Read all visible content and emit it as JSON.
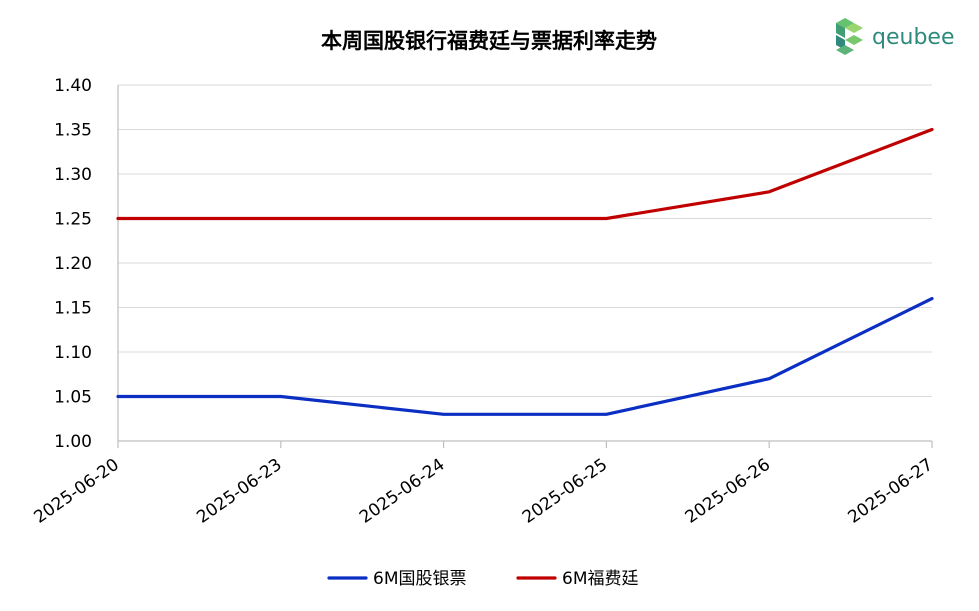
{
  "chart_data": {
    "type": "line",
    "title": "本周国股银行福费廷与票据利率走势",
    "categories": [
      "2025-06-20",
      "2025-06-23",
      "2025-06-24",
      "2025-06-25",
      "2025-06-26",
      "2025-06-27"
    ],
    "series": [
      {
        "name": "6M国股银票",
        "color": "#0b2fc2",
        "values": [
          1.05,
          1.05,
          1.03,
          1.03,
          1.07,
          1.16
        ]
      },
      {
        "name": "6M福费廷",
        "color": "#c00000",
        "values": [
          1.25,
          1.25,
          1.25,
          1.25,
          1.28,
          1.35
        ]
      }
    ],
    "ylim": [
      1.0,
      1.4
    ],
    "yticks": [
      "1.00",
      "1.05",
      "1.10",
      "1.15",
      "1.20",
      "1.25",
      "1.30",
      "1.35",
      "1.40"
    ],
    "grid": true,
    "legend_position": "bottom"
  },
  "brand": {
    "logo_text": "qeubee",
    "logo_color": "#2f8a7d"
  }
}
